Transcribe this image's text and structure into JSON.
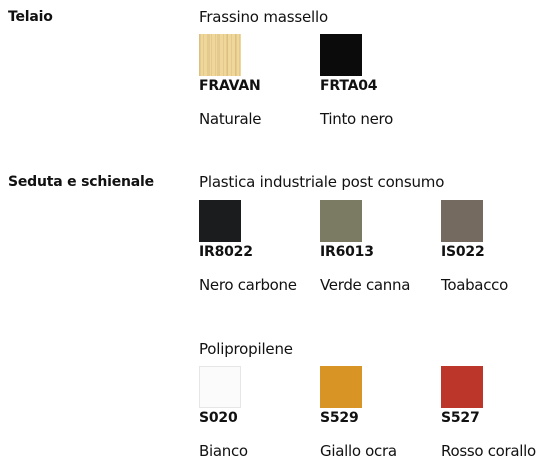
{
  "sections": [
    {
      "label": "Telaio",
      "groups": [
        {
          "title": "Frassino massello",
          "swatches": [
            {
              "code": "FRAVAN",
              "name": "Naturale",
              "color": "#efd79c",
              "texture": "wood"
            },
            {
              "code": "FRTA04",
              "name": "Tinto nero",
              "color": "#0b0b0b"
            }
          ]
        }
      ]
    },
    {
      "label": "Seduta e schienale",
      "groups": [
        {
          "title": "Plastica industriale post consumo",
          "swatches": [
            {
              "code": "IR8022",
              "name": "Nero carbone",
              "color": "#1b1c1e"
            },
            {
              "code": "IR6013",
              "name": "Verde canna",
              "color": "#7b7b64"
            },
            {
              "code": "IS022",
              "name": "Toabacco",
              "color": "#756a5f"
            }
          ]
        },
        {
          "title": "Polipropilene",
          "swatches": [
            {
              "code": "S020",
              "name": "Bianco",
              "color": "#fbfbfb"
            },
            {
              "code": "S529",
              "name": "Giallo ocra",
              "color": "#d99426"
            },
            {
              "code": "S527",
              "name": "Rosso corallo",
              "color": "#bc3629"
            }
          ]
        }
      ]
    }
  ]
}
